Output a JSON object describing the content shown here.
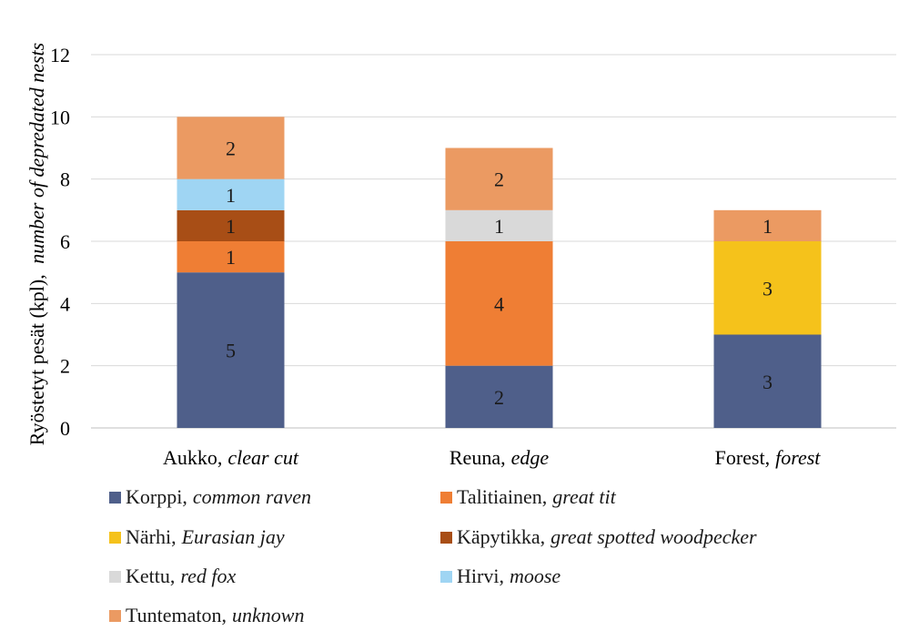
{
  "chart_data": {
    "type": "bar",
    "stacked": true,
    "title": "",
    "xlabel": "",
    "ylabel": {
      "fi": "Ryöstetyt pesät (kpl),",
      "en": "number of depredated nests"
    },
    "ylim": [
      0,
      12
    ],
    "yticks": [
      "0",
      "2",
      "4",
      "6",
      "8",
      "10",
      "12"
    ],
    "grid": true,
    "legend_position": "bottom",
    "categories": [
      {
        "fi": "Aukko,",
        "en": "clear cut"
      },
      {
        "fi": "Reuna,",
        "en": "edge"
      },
      {
        "fi": "Forest,",
        "en": "forest"
      }
    ],
    "series": [
      {
        "fi": "Korppi,",
        "en": "common raven",
        "color": "#4f5f8a",
        "values": [
          5,
          2,
          3
        ]
      },
      {
        "fi": "Talitiainen,",
        "en": "great tit",
        "color": "#ef7e34",
        "values": [
          1,
          4,
          0
        ]
      },
      {
        "fi": "Närhi,",
        "en": "Eurasian jay",
        "color": "#f5c21b",
        "values": [
          0,
          0,
          3
        ]
      },
      {
        "fi": "Käpytikka,",
        "en": "great spotted woodpecker",
        "color": "#a84e16",
        "values": [
          1,
          0,
          0
        ]
      },
      {
        "fi": "Kettu,",
        "en": "red fox",
        "color": "#d9d9d9",
        "values": [
          0,
          1,
          0
        ]
      },
      {
        "fi": "Hirvi,",
        "en": "moose",
        "color": "#9fd5f3",
        "values": [
          1,
          0,
          0
        ]
      },
      {
        "fi": "Tuntematon,",
        "en": "unknown",
        "color": "#eb9a62",
        "values": [
          2,
          2,
          1
        ]
      }
    ]
  }
}
